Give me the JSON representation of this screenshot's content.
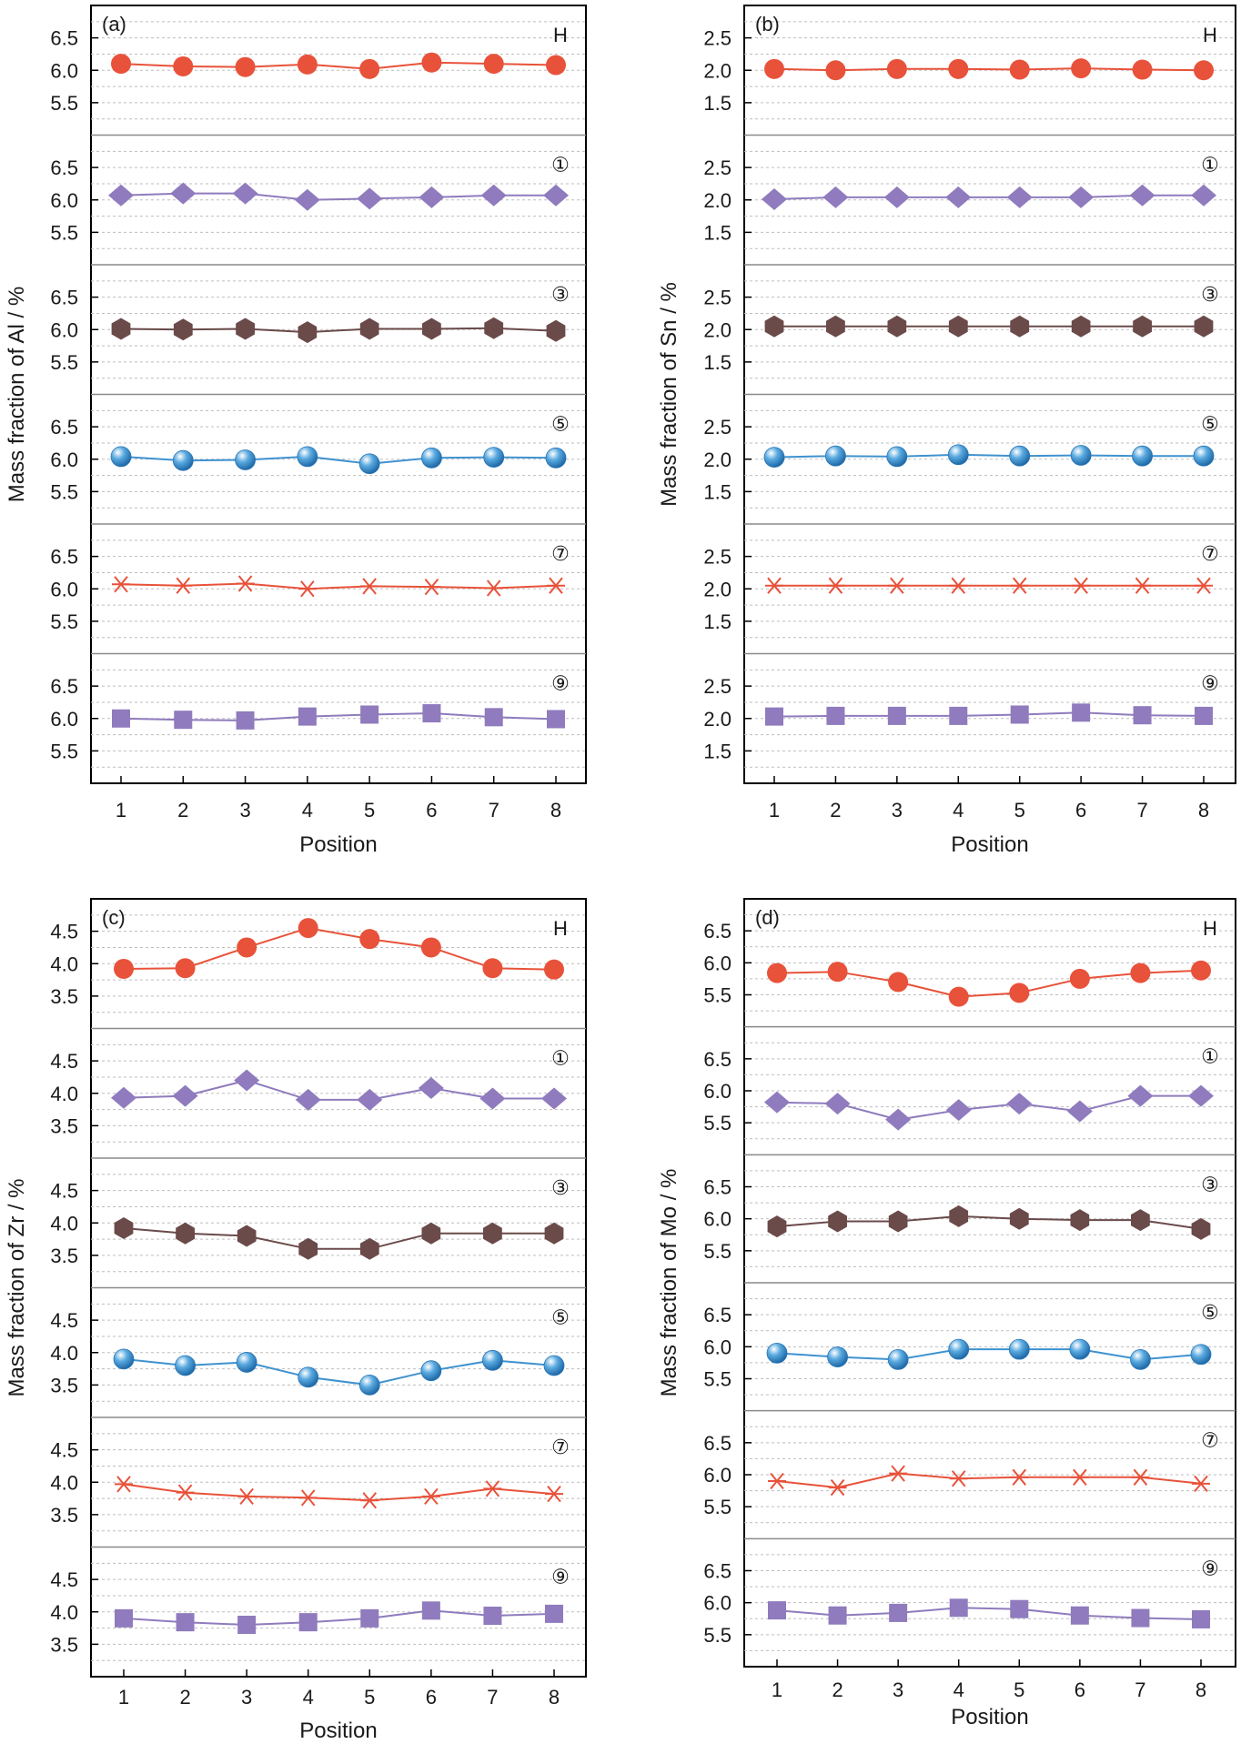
{
  "chart_data": [
    {
      "type": "line",
      "panel_label": "(a)",
      "ylabel": "Mass fraction of Al / %",
      "xlabel": "Position",
      "categories": [
        "1",
        "2",
        "3",
        "4",
        "5",
        "6",
        "7",
        "8"
      ],
      "ylim": [
        5.0,
        7.0
      ],
      "yticks": [
        "5.5",
        "6.0",
        "6.5"
      ],
      "grid": true,
      "series": [
        {
          "name": "H",
          "marker": "circle",
          "color": "#e8523a",
          "values": [
            6.1,
            6.06,
            6.05,
            6.09,
            6.02,
            6.12,
            6.1,
            6.08
          ]
        },
        {
          "name": "①",
          "marker": "diamond",
          "color": "#8f7bbd",
          "values": [
            6.07,
            6.1,
            6.1,
            6.0,
            6.02,
            6.04,
            6.07,
            6.07
          ]
        },
        {
          "name": "③",
          "marker": "hexagon",
          "color": "#6b4a4a",
          "values": [
            6.01,
            6.0,
            6.01,
            5.96,
            6.01,
            6.01,
            6.02,
            5.98
          ]
        },
        {
          "name": "⑤",
          "marker": "sphere",
          "color": "#3f92cf",
          "values": [
            6.04,
            5.98,
            5.99,
            6.04,
            5.93,
            6.02,
            6.03,
            6.02
          ]
        },
        {
          "name": "⑦",
          "marker": "asterisk",
          "color": "#e8523a",
          "values": [
            6.07,
            6.05,
            6.08,
            6.0,
            6.04,
            6.03,
            6.01,
            6.05
          ]
        },
        {
          "name": "⑨",
          "marker": "square",
          "color": "#8f7bbd",
          "values": [
            6.0,
            5.98,
            5.97,
            6.03,
            6.06,
            6.08,
            6.02,
            5.99
          ]
        }
      ]
    },
    {
      "type": "line",
      "panel_label": "(b)",
      "ylabel": "Mass fraction of Sn / %",
      "xlabel": "Position",
      "categories": [
        "1",
        "2",
        "3",
        "4",
        "5",
        "6",
        "7",
        "8"
      ],
      "ylim": [
        1.0,
        3.0
      ],
      "yticks": [
        "1.5",
        "2.0",
        "2.5"
      ],
      "grid": true,
      "series": [
        {
          "name": "H",
          "marker": "circle",
          "color": "#e8523a",
          "values": [
            2.02,
            2.0,
            2.02,
            2.02,
            2.01,
            2.03,
            2.01,
            2.0
          ]
        },
        {
          "name": "①",
          "marker": "diamond",
          "color": "#8f7bbd",
          "values": [
            2.01,
            2.04,
            2.04,
            2.04,
            2.04,
            2.04,
            2.07,
            2.07
          ]
        },
        {
          "name": "③",
          "marker": "hexagon",
          "color": "#6b4a4a",
          "values": [
            2.05,
            2.05,
            2.05,
            2.05,
            2.05,
            2.05,
            2.05,
            2.05
          ]
        },
        {
          "name": "⑤",
          "marker": "sphere",
          "color": "#3f92cf",
          "values": [
            2.03,
            2.05,
            2.04,
            2.07,
            2.05,
            2.06,
            2.05,
            2.05
          ]
        },
        {
          "name": "⑦",
          "marker": "asterisk",
          "color": "#e8523a",
          "values": [
            2.05,
            2.05,
            2.05,
            2.05,
            2.05,
            2.05,
            2.05,
            2.05
          ]
        },
        {
          "name": "⑨",
          "marker": "square",
          "color": "#8f7bbd",
          "values": [
            2.03,
            2.04,
            2.04,
            2.04,
            2.06,
            2.09,
            2.05,
            2.04
          ]
        }
      ]
    },
    {
      "type": "line",
      "panel_label": "(c)",
      "ylabel": "Mass fraction of Zr / %",
      "xlabel": "Position",
      "categories": [
        "1",
        "2",
        "3",
        "4",
        "5",
        "6",
        "7",
        "8"
      ],
      "ylim": [
        3.0,
        5.0
      ],
      "yticks": [
        "3.5",
        "4.0",
        "4.5"
      ],
      "grid": true,
      "series": [
        {
          "name": "H",
          "marker": "circle",
          "color": "#e8523a",
          "values": [
            3.92,
            3.93,
            4.25,
            4.55,
            4.38,
            4.25,
            3.93,
            3.91
          ]
        },
        {
          "name": "①",
          "marker": "diamond",
          "color": "#8f7bbd",
          "values": [
            3.93,
            3.96,
            4.2,
            3.9,
            3.9,
            4.08,
            3.92,
            3.92
          ]
        },
        {
          "name": "③",
          "marker": "hexagon",
          "color": "#6b4a4a",
          "values": [
            3.92,
            3.84,
            3.8,
            3.6,
            3.6,
            3.84,
            3.84,
            3.84
          ]
        },
        {
          "name": "⑤",
          "marker": "sphere",
          "color": "#3f92cf",
          "values": [
            3.9,
            3.8,
            3.85,
            3.62,
            3.5,
            3.72,
            3.88,
            3.8
          ]
        },
        {
          "name": "⑦",
          "marker": "asterisk",
          "color": "#e8523a",
          "values": [
            3.97,
            3.84,
            3.78,
            3.76,
            3.72,
            3.78,
            3.9,
            3.82
          ]
        },
        {
          "name": "⑨",
          "marker": "square",
          "color": "#8f7bbd",
          "values": [
            3.9,
            3.84,
            3.8,
            3.84,
            3.9,
            4.02,
            3.94,
            3.97
          ]
        }
      ]
    },
    {
      "type": "line",
      "panel_label": "(d)",
      "ylabel": "Mass fraction of Mo / %",
      "xlabel": "Position",
      "categories": [
        "1",
        "2",
        "3",
        "4",
        "5",
        "6",
        "7",
        "8"
      ],
      "ylim": [
        5.0,
        7.0
      ],
      "yticks": [
        "5.5",
        "6.0",
        "6.5"
      ],
      "grid": true,
      "series": [
        {
          "name": "H",
          "marker": "circle",
          "color": "#e8523a",
          "values": [
            5.84,
            5.86,
            5.7,
            5.47,
            5.53,
            5.75,
            5.84,
            5.88
          ]
        },
        {
          "name": "①",
          "marker": "diamond",
          "color": "#8f7bbd",
          "values": [
            5.82,
            5.8,
            5.55,
            5.7,
            5.8,
            5.68,
            5.92,
            5.92
          ]
        },
        {
          "name": "③",
          "marker": "hexagon",
          "color": "#6b4a4a",
          "values": [
            5.88,
            5.96,
            5.96,
            6.04,
            6.0,
            5.98,
            5.98,
            5.84
          ]
        },
        {
          "name": "⑤",
          "marker": "sphere",
          "color": "#3f92cf",
          "values": [
            5.9,
            5.84,
            5.8,
            5.96,
            5.96,
            5.96,
            5.8,
            5.88
          ]
        },
        {
          "name": "⑦",
          "marker": "asterisk",
          "color": "#e8523a",
          "values": [
            5.9,
            5.8,
            6.02,
            5.94,
            5.96,
            5.96,
            5.96,
            5.86
          ]
        },
        {
          "name": "⑨",
          "marker": "square",
          "color": "#8f7bbd",
          "values": [
            5.88,
            5.8,
            5.84,
            5.92,
            5.9,
            5.8,
            5.76,
            5.74
          ]
        }
      ]
    }
  ]
}
